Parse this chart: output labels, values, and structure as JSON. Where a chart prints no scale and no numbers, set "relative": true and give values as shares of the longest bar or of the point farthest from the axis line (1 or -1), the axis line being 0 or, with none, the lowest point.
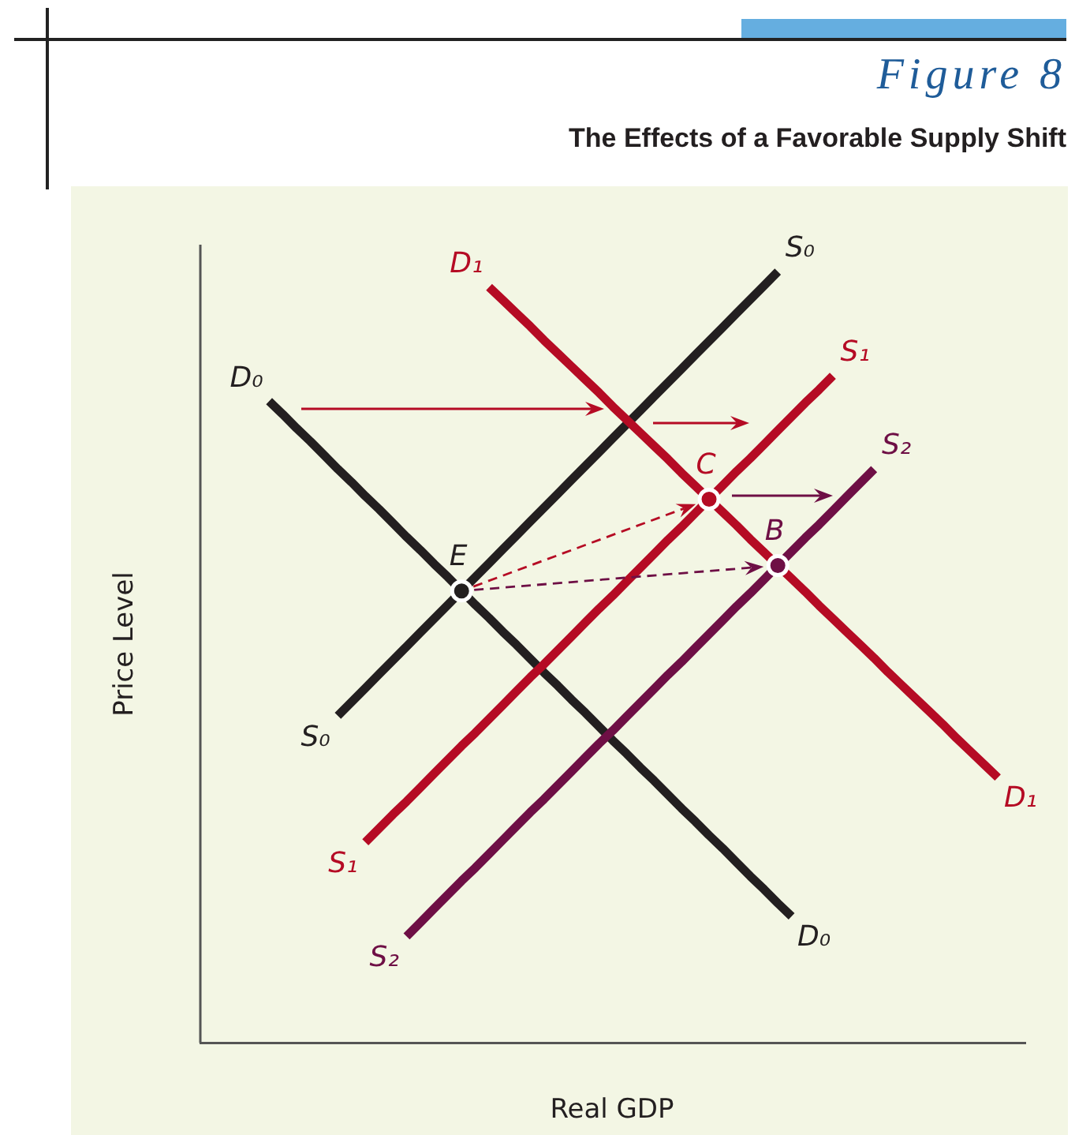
{
  "chart_data": {
    "type": "line",
    "title": "Figure 8",
    "subtitle": "The Effects of a Favorable Supply Shift",
    "xlabel": "Real GDP",
    "ylabel": "Price Level",
    "relative": true,
    "legend": false,
    "marker": "none",
    "categories": [
      null,
      null,
      null,
      null,
      null,
      null,
      null,
      null,
      null,
      null,
      null,
      null,
      null,
      null,
      null,
      null,
      null,
      null,
      null,
      null,
      null,
      null,
      null,
      null,
      null,
      null,
      null,
      null,
      null,
      null,
      null,
      null,
      null,
      null,
      null,
      null,
      null,
      null,
      null,
      null,
      null,
      null,
      null,
      null,
      null,
      null,
      null,
      null,
      null,
      null,
      null,
      null,
      null,
      null,
      null,
      null,
      null,
      null,
      null,
      null,
      null
    ],
    "series": [
      {
        "name": "S₀",
        "color": "#231f20",
        "values": [
          null,
          null,
          null,
          null,
          null,
          null,
          null,
          null,
          null,
          null,
          0.424,
          0.442,
          0.46,
          0.478,
          0.496,
          0.514,
          0.532,
          0.55,
          0.568,
          0.586,
          0.604,
          0.622,
          0.64,
          0.658,
          0.676,
          0.694,
          0.712,
          0.73,
          0.748,
          0.766,
          0.784,
          0.802,
          0.82,
          0.838,
          0.856,
          0.874,
          0.892,
          0.91,
          0.928,
          0.946,
          0.964,
          0.982,
          1.0,
          null,
          null,
          null,
          null,
          null,
          null,
          null,
          null,
          null,
          null,
          null,
          null,
          null,
          null,
          null,
          null,
          null,
          null
        ]
      },
      {
        "name": "D₀",
        "color": "#231f20",
        "values": [
          null,
          null,
          null,
          null,
          null,
          0.832,
          0.815,
          0.797,
          0.78,
          0.762,
          0.744,
          0.727,
          0.709,
          0.692,
          0.674,
          0.656,
          0.639,
          0.621,
          0.604,
          0.586,
          0.568,
          0.551,
          0.533,
          0.516,
          0.498,
          0.48,
          0.463,
          0.445,
          0.428,
          0.41,
          0.392,
          0.375,
          0.357,
          0.34,
          0.322,
          0.304,
          0.287,
          0.269,
          0.252,
          0.234,
          0.216,
          0.199,
          0.181,
          0.164,
          null,
          null,
          null,
          null,
          null,
          null,
          null,
          null,
          null,
          null,
          null,
          null,
          null,
          null,
          null,
          null,
          null
        ]
      },
      {
        "name": "D₁",
        "color": "#b50b24",
        "values": [
          null,
          null,
          null,
          null,
          null,
          null,
          null,
          null,
          null,
          null,
          null,
          null,
          null,
          null,
          null,
          null,
          null,
          null,
          null,
          null,
          null,
          0.98,
          0.963,
          0.946,
          0.929,
          0.911,
          0.894,
          0.877,
          0.86,
          0.843,
          0.825,
          0.808,
          0.791,
          0.774,
          0.757,
          0.739,
          0.722,
          0.705,
          0.688,
          0.671,
          0.653,
          0.636,
          0.619,
          0.602,
          0.585,
          0.567,
          0.55,
          0.533,
          0.516,
          0.499,
          0.481,
          0.464,
          0.447,
          0.43,
          0.413,
          0.395,
          0.378,
          0.361,
          0.344,
          null,
          null
        ]
      },
      {
        "name": "S₁",
        "color": "#b50b24",
        "values": [
          null,
          null,
          null,
          null,
          null,
          null,
          null,
          null,
          null,
          null,
          null,
          null,
          0.26,
          0.278,
          0.296,
          0.313,
          0.331,
          0.349,
          0.367,
          0.385,
          0.402,
          0.42,
          0.438,
          0.456,
          0.474,
          0.491,
          0.509,
          0.527,
          0.545,
          0.563,
          0.58,
          0.598,
          0.616,
          0.634,
          0.652,
          0.669,
          0.687,
          0.705,
          0.723,
          0.741,
          0.758,
          0.776,
          0.794,
          0.812,
          0.83,
          0.847,
          0.865,
          null,
          null,
          null,
          null,
          null,
          null,
          null,
          null,
          null,
          null,
          null,
          null,
          null,
          null
        ]
      },
      {
        "name": "S₂",
        "color": "#6e0f45",
        "values": [
          null,
          null,
          null,
          null,
          null,
          null,
          null,
          null,
          null,
          null,
          null,
          null,
          null,
          null,
          null,
          0.138,
          0.156,
          0.174,
          0.192,
          0.21,
          0.227,
          0.245,
          0.263,
          0.281,
          0.299,
          0.316,
          0.334,
          0.352,
          0.37,
          0.388,
          0.405,
          0.423,
          0.441,
          0.459,
          0.477,
          0.494,
          0.512,
          0.53,
          0.548,
          0.566,
          0.583,
          0.601,
          0.619,
          0.637,
          0.655,
          0.672,
          0.69,
          0.708,
          0.726,
          0.744,
          null,
          null,
          null,
          null,
          null,
          null,
          null,
          null,
          null,
          null,
          null
        ]
      },
      {
        "marker": "circle",
        "color": "#231f20",
        "values": [
          null,
          null,
          null,
          null,
          null,
          null,
          null,
          null,
          null,
          null,
          null,
          null,
          null,
          null,
          null,
          null,
          null,
          null,
          null,
          0.586,
          null,
          null,
          null,
          null,
          null,
          null,
          null,
          null,
          null,
          null,
          null,
          null,
          null,
          null,
          null,
          null,
          null,
          null,
          null,
          null,
          null,
          null,
          null,
          null,
          null,
          null,
          null,
          null,
          null,
          null,
          null,
          null,
          null,
          null,
          null,
          null,
          null,
          null,
          null,
          null,
          null
        ]
      },
      {
        "marker": "circle",
        "color": "#b50b24",
        "values": [
          null,
          null,
          null,
          null,
          null,
          null,
          null,
          null,
          null,
          null,
          null,
          null,
          null,
          null,
          null,
          null,
          null,
          null,
          null,
          null,
          null,
          null,
          null,
          null,
          null,
          null,
          null,
          null,
          null,
          null,
          null,
          null,
          null,
          null,
          null,
          null,
          null,
          0.705,
          null,
          null,
          null,
          null,
          null,
          null,
          null,
          null,
          null,
          null,
          null,
          null,
          null,
          null,
          null,
          null,
          null,
          null,
          null,
          null,
          null,
          null,
          null
        ]
      },
      {
        "marker": "circle",
        "color": "#6e0f45",
        "values": [
          null,
          null,
          null,
          null,
          null,
          null,
          null,
          null,
          null,
          null,
          null,
          null,
          null,
          null,
          null,
          null,
          null,
          null,
          null,
          null,
          null,
          null,
          null,
          null,
          null,
          null,
          null,
          null,
          null,
          null,
          null,
          null,
          null,
          null,
          null,
          null,
          null,
          null,
          null,
          null,
          null,
          null,
          0.619,
          null,
          null,
          null,
          null,
          null,
          null,
          null,
          null,
          null,
          null,
          null,
          null,
          null,
          null,
          null,
          null,
          null,
          null
        ]
      }
    ],
    "annotations": [
      {
        "text": "E",
        "y": 0.586
      },
      {
        "text": "C",
        "y": 0.705
      },
      {
        "text": "B",
        "y": 0.619
      }
    ]
  }
}
